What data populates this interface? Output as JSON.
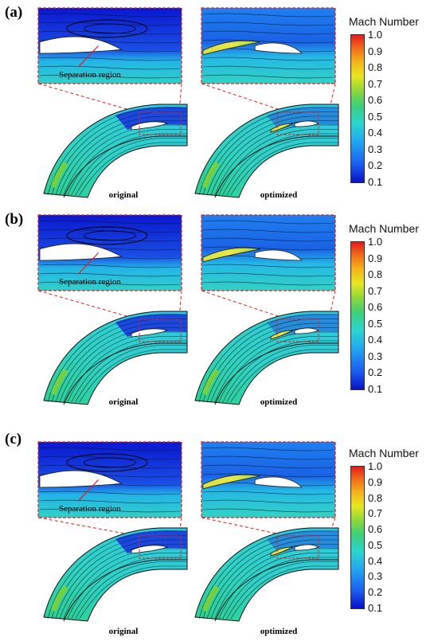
{
  "panels": [
    {
      "label": "(a)",
      "caption_left": "original",
      "caption_right": "optimized",
      "annotation": "Separation region"
    },
    {
      "label": "(b)",
      "caption_left": "original",
      "caption_right": "optimized",
      "annotation": "Separation region"
    },
    {
      "label": "(c)",
      "caption_left": "original",
      "caption_right": "optimized",
      "annotation": "Separation region"
    }
  ],
  "colorbar": {
    "title": "Mach Number",
    "ticks": [
      "1.0",
      "0.9",
      "0.8",
      "0.7",
      "0.6",
      "0.5",
      "0.4",
      "0.3",
      "0.2",
      "0.1"
    ]
  },
  "colors": {
    "low": "#0a10c8",
    "mid": "#2ad6d0",
    "high": "#e21a1a",
    "callout": "#e02020"
  }
}
